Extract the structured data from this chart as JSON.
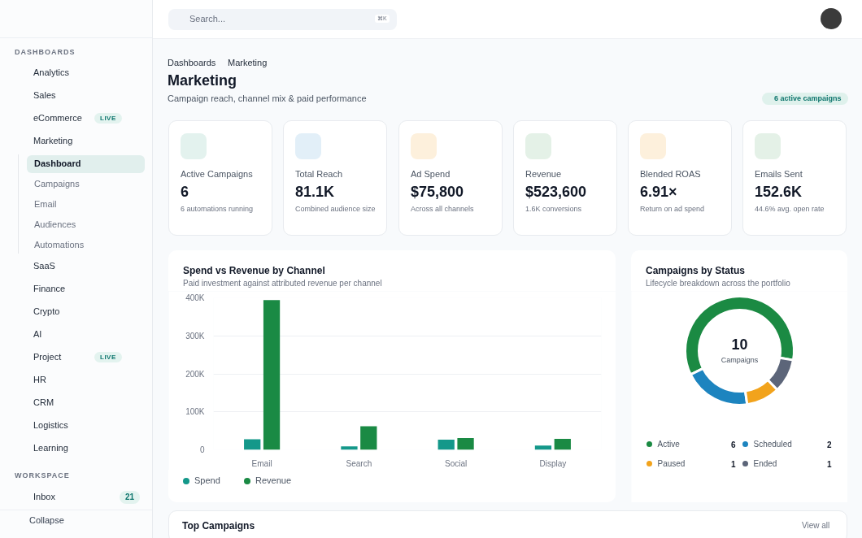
{
  "chart_data": [
    {
      "type": "other",
      "annotations": [
        "DASHBOARDS",
        "Analytics",
        "Sales",
        "eCommerce",
        "LIVE",
        "Marketing",
        "Dashboard",
        "Campaigns",
        "Email",
        "Audiences",
        "Automations",
        "SaaS",
        "Finance",
        "Crypto",
        "AI",
        "Project",
        "LIVE",
        "HR",
        "CRM",
        "Logistics",
        "Learning",
        "WORKSPACE",
        "Inbox",
        "21",
        "Collapse"
      ]
    },
    {
      "type": "other",
      "annotations": [
        "Search...",
        "⌘K"
      ]
    },
    {
      "type": "other",
      "title": "Marketing",
      "subtitle": "Campaign reach, channel mix & paid performance",
      "annotations": [
        "Dashboards",
        "Marketing",
        "6 active campaigns"
      ]
    },
    {
      "type": "other",
      "title": "Active Campaigns",
      "annotations": [
        "6",
        "6 automations running"
      ]
    },
    {
      "type": "other",
      "title": "Total Reach",
      "annotations": [
        "81.1K",
        "Combined audience size"
      ]
    },
    {
      "type": "other",
      "title": "Ad Spend",
      "annotations": [
        "$75,800",
        "Across all channels"
      ]
    },
    {
      "type": "other",
      "title": "Revenue",
      "annotations": [
        "$523,600",
        "1.6K conversions"
      ]
    },
    {
      "type": "other",
      "title": "Blended ROAS",
      "annotations": [
        "6.91×",
        "Return on ad spend"
      ]
    },
    {
      "type": "other",
      "title": "Emails Sent",
      "annotations": [
        "152.6K",
        "44.6% avg. open rate"
      ]
    },
    {
      "type": "bar",
      "title": "Spend vs Revenue by Channel",
      "subtitle": "Paid investment against attributed revenue per channel",
      "categories": [
        "Email",
        "Search",
        "Social",
        "Display"
      ],
      "series": [
        {
          "name": "Spend",
          "color": "#14988a",
          "values": [
            28000,
            9000,
            27000,
            11000
          ]
        },
        {
          "name": "Revenue",
          "color": "#1a8a44",
          "values": [
            394000,
            62000,
            31000,
            29000
          ]
        }
      ],
      "ylim": [
        0,
        400000
      ],
      "yticks": [
        0,
        {
          "value": 100000,
          "label": "100K"
        },
        {
          "value": 200000,
          "label": "200K"
        },
        {
          "value": 300000,
          "label": "300K"
        },
        {
          "value": 400000,
          "label": "400K"
        }
      ],
      "grid": "y",
      "legend": "bottom"
    },
    {
      "type": "donut",
      "title": "Campaigns by Status",
      "subtitle": "Lifecycle breakdown across the portfolio",
      "categories": [
        "Active",
        "Scheduled",
        "Paused",
        "Ended"
      ],
      "values": [
        6,
        2,
        1,
        1
      ],
      "colors": [
        "#1b8a43",
        "#1d84bf",
        "#f2a31c",
        "#5c6579"
      ],
      "data_labels": true,
      "legend": "bottom",
      "annotations": [
        "10",
        "Campaigns"
      ]
    },
    {
      "type": "other",
      "title": "Top Campaigns",
      "annotations": [
        "View all"
      ]
    }
  ]
}
